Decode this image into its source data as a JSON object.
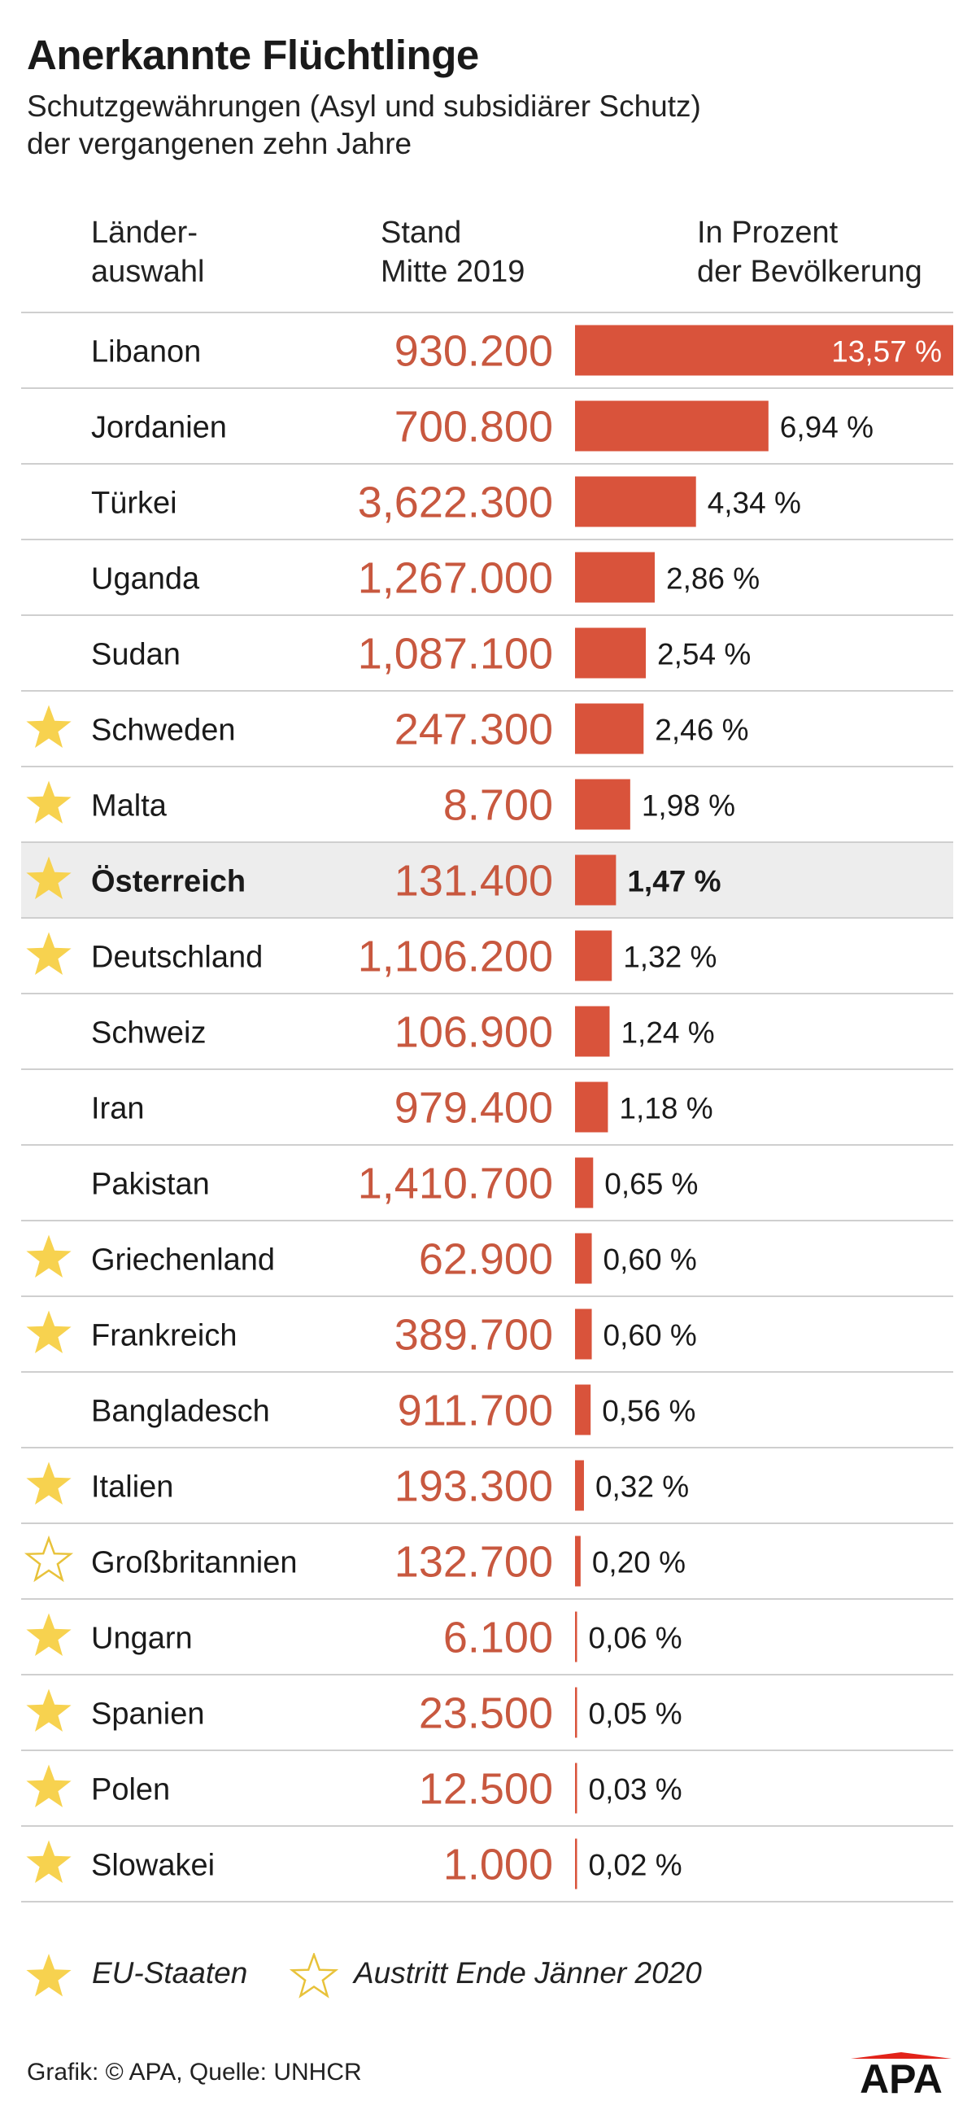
{
  "title": "Anerkannte Flüchtlinge",
  "subtitle": [
    "Schutzgewährungen (Asyl und subsidiärer Schutz)",
    "der vergangenen zehn Jahre"
  ],
  "columns": {
    "country": [
      "Länder-",
      "auswahl"
    ],
    "stand": [
      "Stand",
      "Mitte 2019"
    ],
    "percent": [
      "In Prozent",
      "der Bevölkerung"
    ]
  },
  "colors": {
    "bar": "#d9533b",
    "number": "#c8583f",
    "star": "#f7d24f",
    "star_outline": "#e8c23a",
    "row_highlight": "#ededed",
    "rule": "#cfcfcf",
    "logo_red": "#e2231a"
  },
  "chart_data": {
    "type": "bar",
    "orientation": "horizontal",
    "x_range": [
      0,
      13.57
    ],
    "rows": [
      {
        "country": "Libanon",
        "value": "930.200",
        "percent": 13.57,
        "percent_label": "13,57 %",
        "star": "none"
      },
      {
        "country": "Jordanien",
        "value": "700.800",
        "percent": 6.94,
        "percent_label": "6,94 %",
        "star": "none"
      },
      {
        "country": "Türkei",
        "value": "3,622.300",
        "percent": 4.34,
        "percent_label": "4,34 %",
        "star": "none"
      },
      {
        "country": "Uganda",
        "value": "1,267.000",
        "percent": 2.86,
        "percent_label": "2,86 %",
        "star": "none"
      },
      {
        "country": "Sudan",
        "value": "1,087.100",
        "percent": 2.54,
        "percent_label": "2,54 %",
        "star": "none"
      },
      {
        "country": "Schweden",
        "value": "247.300",
        "percent": 2.46,
        "percent_label": "2,46 %",
        "star": "eu"
      },
      {
        "country": "Malta",
        "value": "8.700",
        "percent": 1.98,
        "percent_label": "1,98 %",
        "star": "eu"
      },
      {
        "country": "Österreich",
        "value": "131.400",
        "percent": 1.47,
        "percent_label": "1,47 %",
        "star": "eu",
        "highlight": true
      },
      {
        "country": "Deutschland",
        "value": "1,106.200",
        "percent": 1.32,
        "percent_label": "1,32 %",
        "star": "eu"
      },
      {
        "country": "Schweiz",
        "value": "106.900",
        "percent": 1.24,
        "percent_label": "1,24 %",
        "star": "none"
      },
      {
        "country": "Iran",
        "value": "979.400",
        "percent": 1.18,
        "percent_label": "1,18 %",
        "star": "none"
      },
      {
        "country": "Pakistan",
        "value": "1,410.700",
        "percent": 0.65,
        "percent_label": "0,65 %",
        "star": "none"
      },
      {
        "country": "Griechenland",
        "value": "62.900",
        "percent": 0.6,
        "percent_label": "0,60 %",
        "star": "eu"
      },
      {
        "country": "Frankreich",
        "value": "389.700",
        "percent": 0.6,
        "percent_label": "0,60 %",
        "star": "eu"
      },
      {
        "country": "Bangladesch",
        "value": "911.700",
        "percent": 0.56,
        "percent_label": "0,56 %",
        "star": "none"
      },
      {
        "country": "Italien",
        "value": "193.300",
        "percent": 0.32,
        "percent_label": "0,32 %",
        "star": "eu"
      },
      {
        "country": "Großbritannien",
        "value": "132.700",
        "percent": 0.2,
        "percent_label": "0,20 %",
        "star": "leaving"
      },
      {
        "country": "Ungarn",
        "value": "6.100",
        "percent": 0.06,
        "percent_label": "0,06 %",
        "star": "eu"
      },
      {
        "country": "Spanien",
        "value": "23.500",
        "percent": 0.05,
        "percent_label": "0,05 %",
        "star": "eu"
      },
      {
        "country": "Polen",
        "value": "12.500",
        "percent": 0.03,
        "percent_label": "0,03 %",
        "star": "eu"
      },
      {
        "country": "Slowakei",
        "value": "1.000",
        "percent": 0.02,
        "percent_label": "0,02 %",
        "star": "eu"
      }
    ]
  },
  "legend": {
    "eu_label": "EU-Staaten",
    "leaving_label": "Austritt Ende Jänner 2020",
    "eu_icon": "star-filled-icon",
    "leaving_icon": "star-outline-icon"
  },
  "source": "Grafik: © APA, Quelle: UNHCR",
  "logo": "APA"
}
